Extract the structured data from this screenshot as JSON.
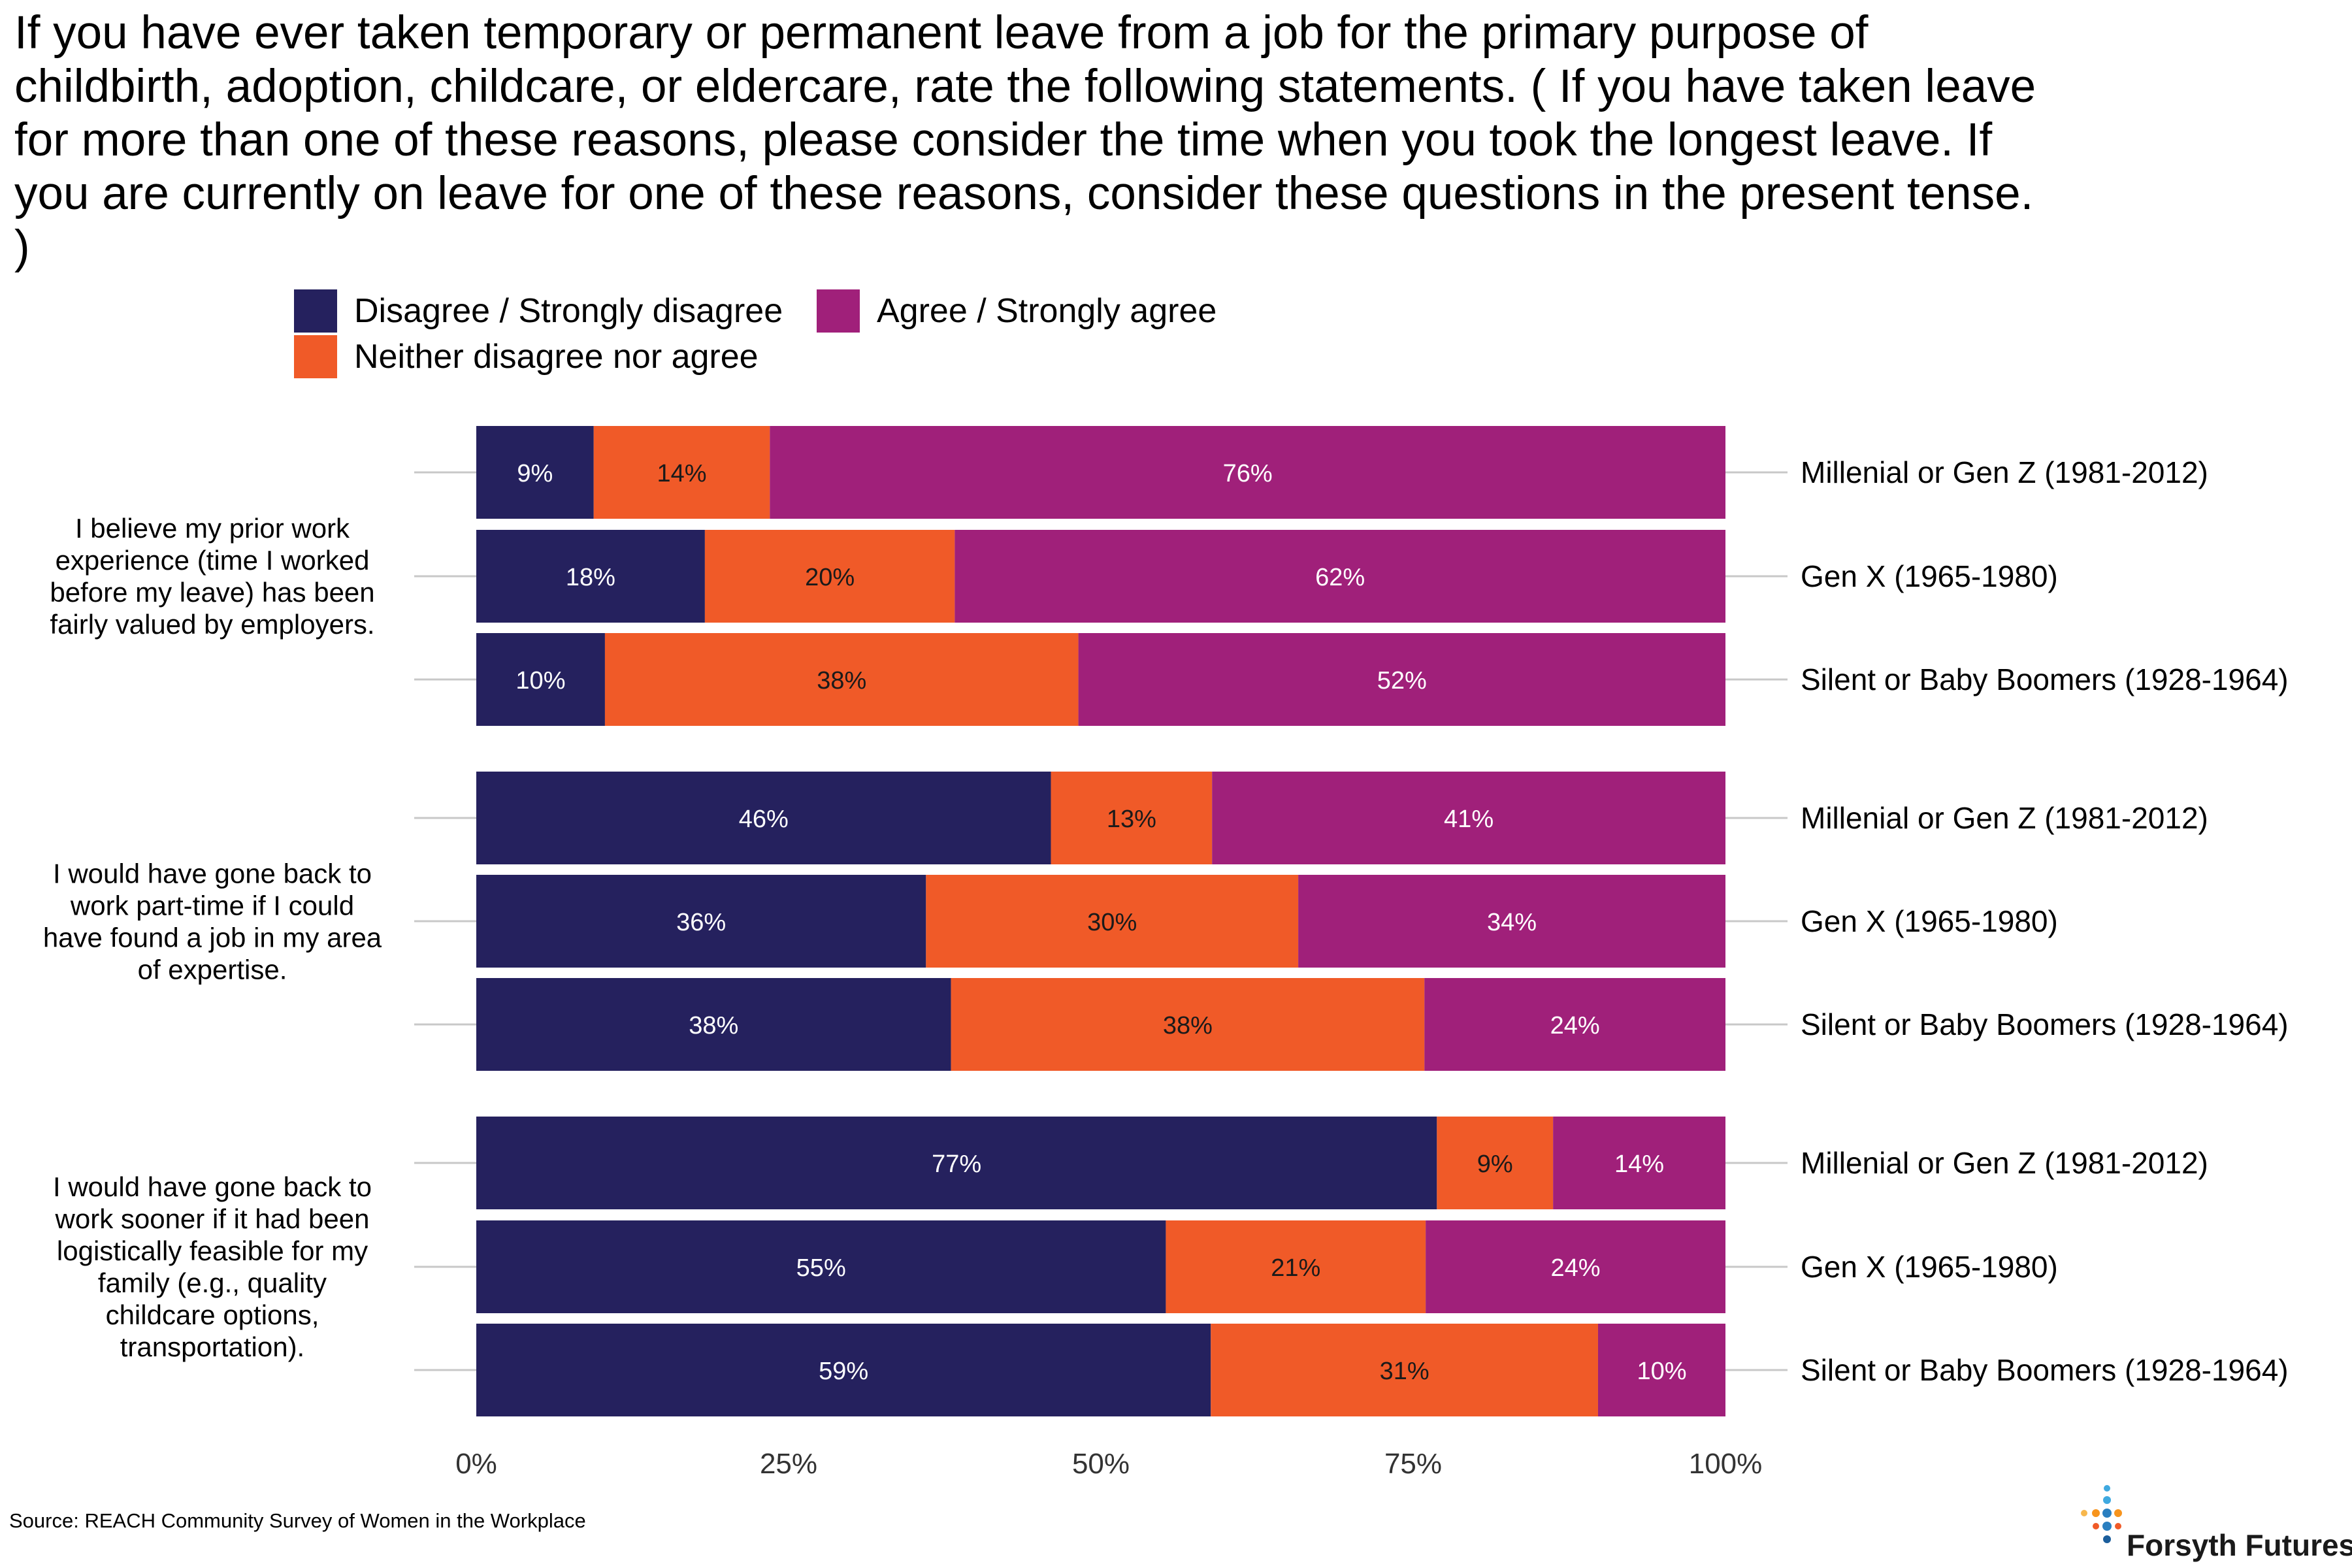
{
  "title": "If you have ever taken temporary or permanent leave from a job for the primary purpose of childbirth, adoption, childcare, or eldercare, rate the following statements. ( If you have taken leave for more than one of these reasons, please consider the time when you took the longest leave. If you are currently on leave for one of these reasons, consider these questions in the present tense. )",
  "source": "Source: REACH Community Survey of Women in the Workplace",
  "logo": {
    "name": "Forsyth Futures"
  },
  "colors": {
    "disagree": "#25215e",
    "neither": "#f05a28",
    "agree": "#a0207a",
    "grid": "#c8c8c8"
  },
  "chart_data": {
    "type": "bar",
    "orientation": "horizontal",
    "stacked": true,
    "xlim": [
      0,
      100
    ],
    "x_ticks": [
      "0%",
      "25%",
      "50%",
      "75%",
      "100%"
    ],
    "legend_position": "top",
    "legend": [
      "Disagree / Strongly disagree",
      "Agree / Strongly agree",
      "Neither disagree nor agree"
    ],
    "series": [
      {
        "name": "Disagree / Strongly disagree",
        "color": "#25215e"
      },
      {
        "name": "Neither disagree nor agree",
        "color": "#f05a28"
      },
      {
        "name": "Agree / Strongly agree",
        "color": "#a0207a"
      }
    ],
    "groups": [
      {
        "statement": [
          "I believe my prior work",
          "experience (time I worked",
          "before my leave) has been",
          "fairly valued by employers."
        ],
        "rows": [
          {
            "cohort": "Millenial or Gen Z (1981-2012)",
            "values": [
              9.4,
              14.1,
              76.5
            ],
            "labels": [
              "9%",
              "14%",
              "76%"
            ]
          },
          {
            "cohort": "Gen X (1965-1980)",
            "values": [
              18.3,
              20.0,
              61.7
            ],
            "labels": [
              "18%",
              "20%",
              "62%"
            ]
          },
          {
            "cohort": "Silent or Baby Boomers (1928-1964)",
            "values": [
              10.3,
              37.9,
              51.8
            ],
            "labels": [
              "10%",
              "38%",
              "52%"
            ]
          }
        ]
      },
      {
        "statement": [
          "I would have gone back to",
          "work part-time if I could",
          "have found a job in my area",
          "of expertise."
        ],
        "rows": [
          {
            "cohort": "Millenial or Gen Z (1981-2012)",
            "values": [
              46.0,
              12.9,
              41.1
            ],
            "labels": [
              "46%",
              "13%",
              "41%"
            ]
          },
          {
            "cohort": "Gen X (1965-1980)",
            "values": [
              36.0,
              29.8,
              34.2
            ],
            "labels": [
              "36%",
              "30%",
              "34%"
            ]
          },
          {
            "cohort": "Silent or Baby Boomers (1928-1964)",
            "values": [
              38.0,
              37.9,
              24.1
            ],
            "labels": [
              "38%",
              "38%",
              "24%"
            ]
          }
        ]
      },
      {
        "statement": [
          "I would have gone back to",
          "work sooner if it had been",
          "logistically feasible for my",
          "family (e.g., quality",
          "childcare options,",
          "transportation)."
        ],
        "rows": [
          {
            "cohort": "Millenial or Gen Z (1981-2012)",
            "values": [
              76.9,
              9.3,
              13.8
            ],
            "labels": [
              "77%",
              "9%",
              "14%"
            ]
          },
          {
            "cohort": "Gen X (1965-1980)",
            "values": [
              55.2,
              20.8,
              24.0
            ],
            "labels": [
              "55%",
              "21%",
              "24%"
            ]
          },
          {
            "cohort": "Silent or Baby Boomers (1928-1964)",
            "values": [
              58.8,
              31.0,
              10.2
            ],
            "labels": [
              "59%",
              "31%",
              "10%"
            ]
          }
        ]
      }
    ]
  }
}
